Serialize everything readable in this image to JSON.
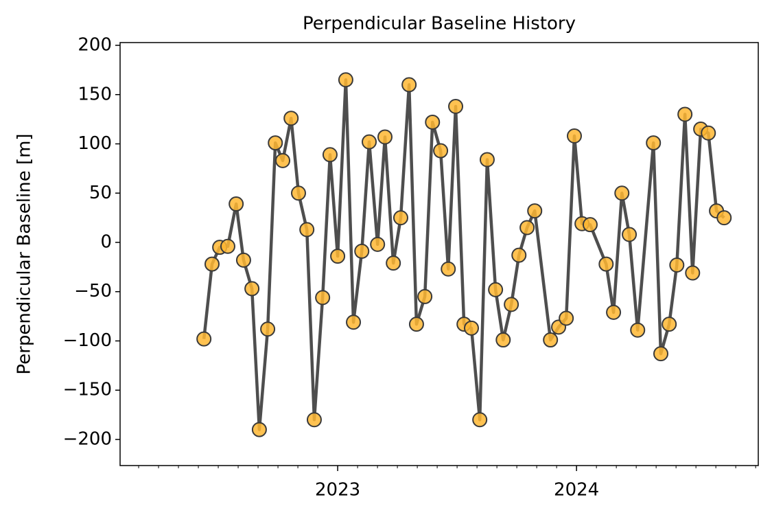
{
  "chart_data": {
    "type": "line",
    "title": "Perpendicular Baseline History",
    "ylabel": "Perpendicular Baseline [m]",
    "x": [
      2022.44,
      2022.474,
      2022.506,
      2022.54,
      2022.575,
      2022.606,
      2022.641,
      2022.672,
      2022.707,
      2022.739,
      2022.77,
      2022.805,
      2022.836,
      2022.871,
      2022.902,
      2022.937,
      2022.968,
      2023.0,
      2023.034,
      2023.066,
      2023.101,
      2023.132,
      2023.167,
      2023.198,
      2023.233,
      2023.264,
      2023.299,
      2023.33,
      2023.365,
      2023.397,
      2023.431,
      2023.463,
      2023.494,
      2023.529,
      2023.56,
      2023.595,
      2023.626,
      2023.661,
      2023.693,
      2023.727,
      2023.759,
      2023.793,
      2023.825,
      2023.891,
      2023.925,
      2023.957,
      2023.991,
      2024.023,
      2024.057,
      2024.124,
      2024.155,
      2024.19,
      2024.221,
      2024.256,
      2024.322,
      2024.353,
      2024.388,
      2024.42,
      2024.454,
      2024.486,
      2024.52,
      2024.552,
      2024.586,
      2024.618
    ],
    "series": [
      {
        "color": "#444444",
        "marker_color": "#ffb732",
        "marker_edge": "#3a3a3a",
        "values": [
          -98,
          -22,
          -5,
          -4,
          39,
          -18,
          -47,
          -190,
          -88,
          101,
          83,
          126,
          50,
          13,
          -180,
          -56,
          89,
          -14,
          165,
          -81,
          -9,
          102,
          -2,
          107,
          -21,
          25,
          160,
          -83,
          -55,
          122,
          93,
          -27,
          138,
          -83,
          -87,
          -180,
          84,
          -48,
          -99,
          -63,
          -13,
          15,
          32,
          -99,
          -86,
          -77,
          108,
          19,
          18,
          -22,
          -71,
          50,
          8,
          -89,
          101,
          -113,
          -83,
          -23,
          130,
          -31,
          115,
          111,
          32,
          25
        ]
      }
    ],
    "xlim": [
      2022.089,
      2024.761
    ],
    "xticks": [
      2023,
      2024
    ],
    "ylim": [
      -226.5,
      202.8
    ],
    "yticks": [
      {
        "value": -200,
        "label": "−200"
      },
      {
        "value": -150,
        "label": "−150"
      },
      {
        "value": -100,
        "label": "−100"
      },
      {
        "value": -50,
        "label": "−50"
      },
      0,
      50,
      100,
      150,
      200
    ]
  }
}
